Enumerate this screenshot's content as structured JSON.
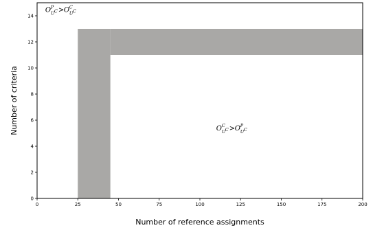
{
  "chart_data": {
    "type": "area",
    "title": "",
    "xlabel": "Number of reference assignments",
    "ylabel": "Number of criteria",
    "xlim": [
      0,
      200
    ],
    "ylim": [
      0,
      15
    ],
    "xticks": [
      0,
      25,
      50,
      75,
      100,
      125,
      150,
      175,
      200
    ],
    "yticks": [
      0,
      2,
      4,
      6,
      8,
      10,
      12,
      14
    ],
    "grid": false,
    "legend": "none",
    "region_color": "#a9a8a6",
    "regions": [
      {
        "x": [
          25,
          45
        ],
        "y": [
          0,
          13
        ]
      },
      {
        "x": [
          45,
          200
        ],
        "y": [
          11,
          13
        ]
      }
    ],
    "annotations": [
      {
        "x": 5,
        "y": 14.3,
        "left": {
          "base": "O",
          "sup": "P",
          "sub": "U",
          "subsup": "C"
        },
        "operator": ">",
        "right": {
          "base": "O",
          "sup": "C",
          "sub": "U",
          "subsup": "C"
        }
      },
      {
        "x": 110,
        "y": 5.2,
        "left": {
          "base": "O",
          "sup": "C",
          "sub": "U",
          "subsup": "C"
        },
        "operator": ">",
        "right": {
          "base": "O",
          "sup": "P",
          "sub": "U",
          "subsup": "C"
        }
      }
    ]
  }
}
